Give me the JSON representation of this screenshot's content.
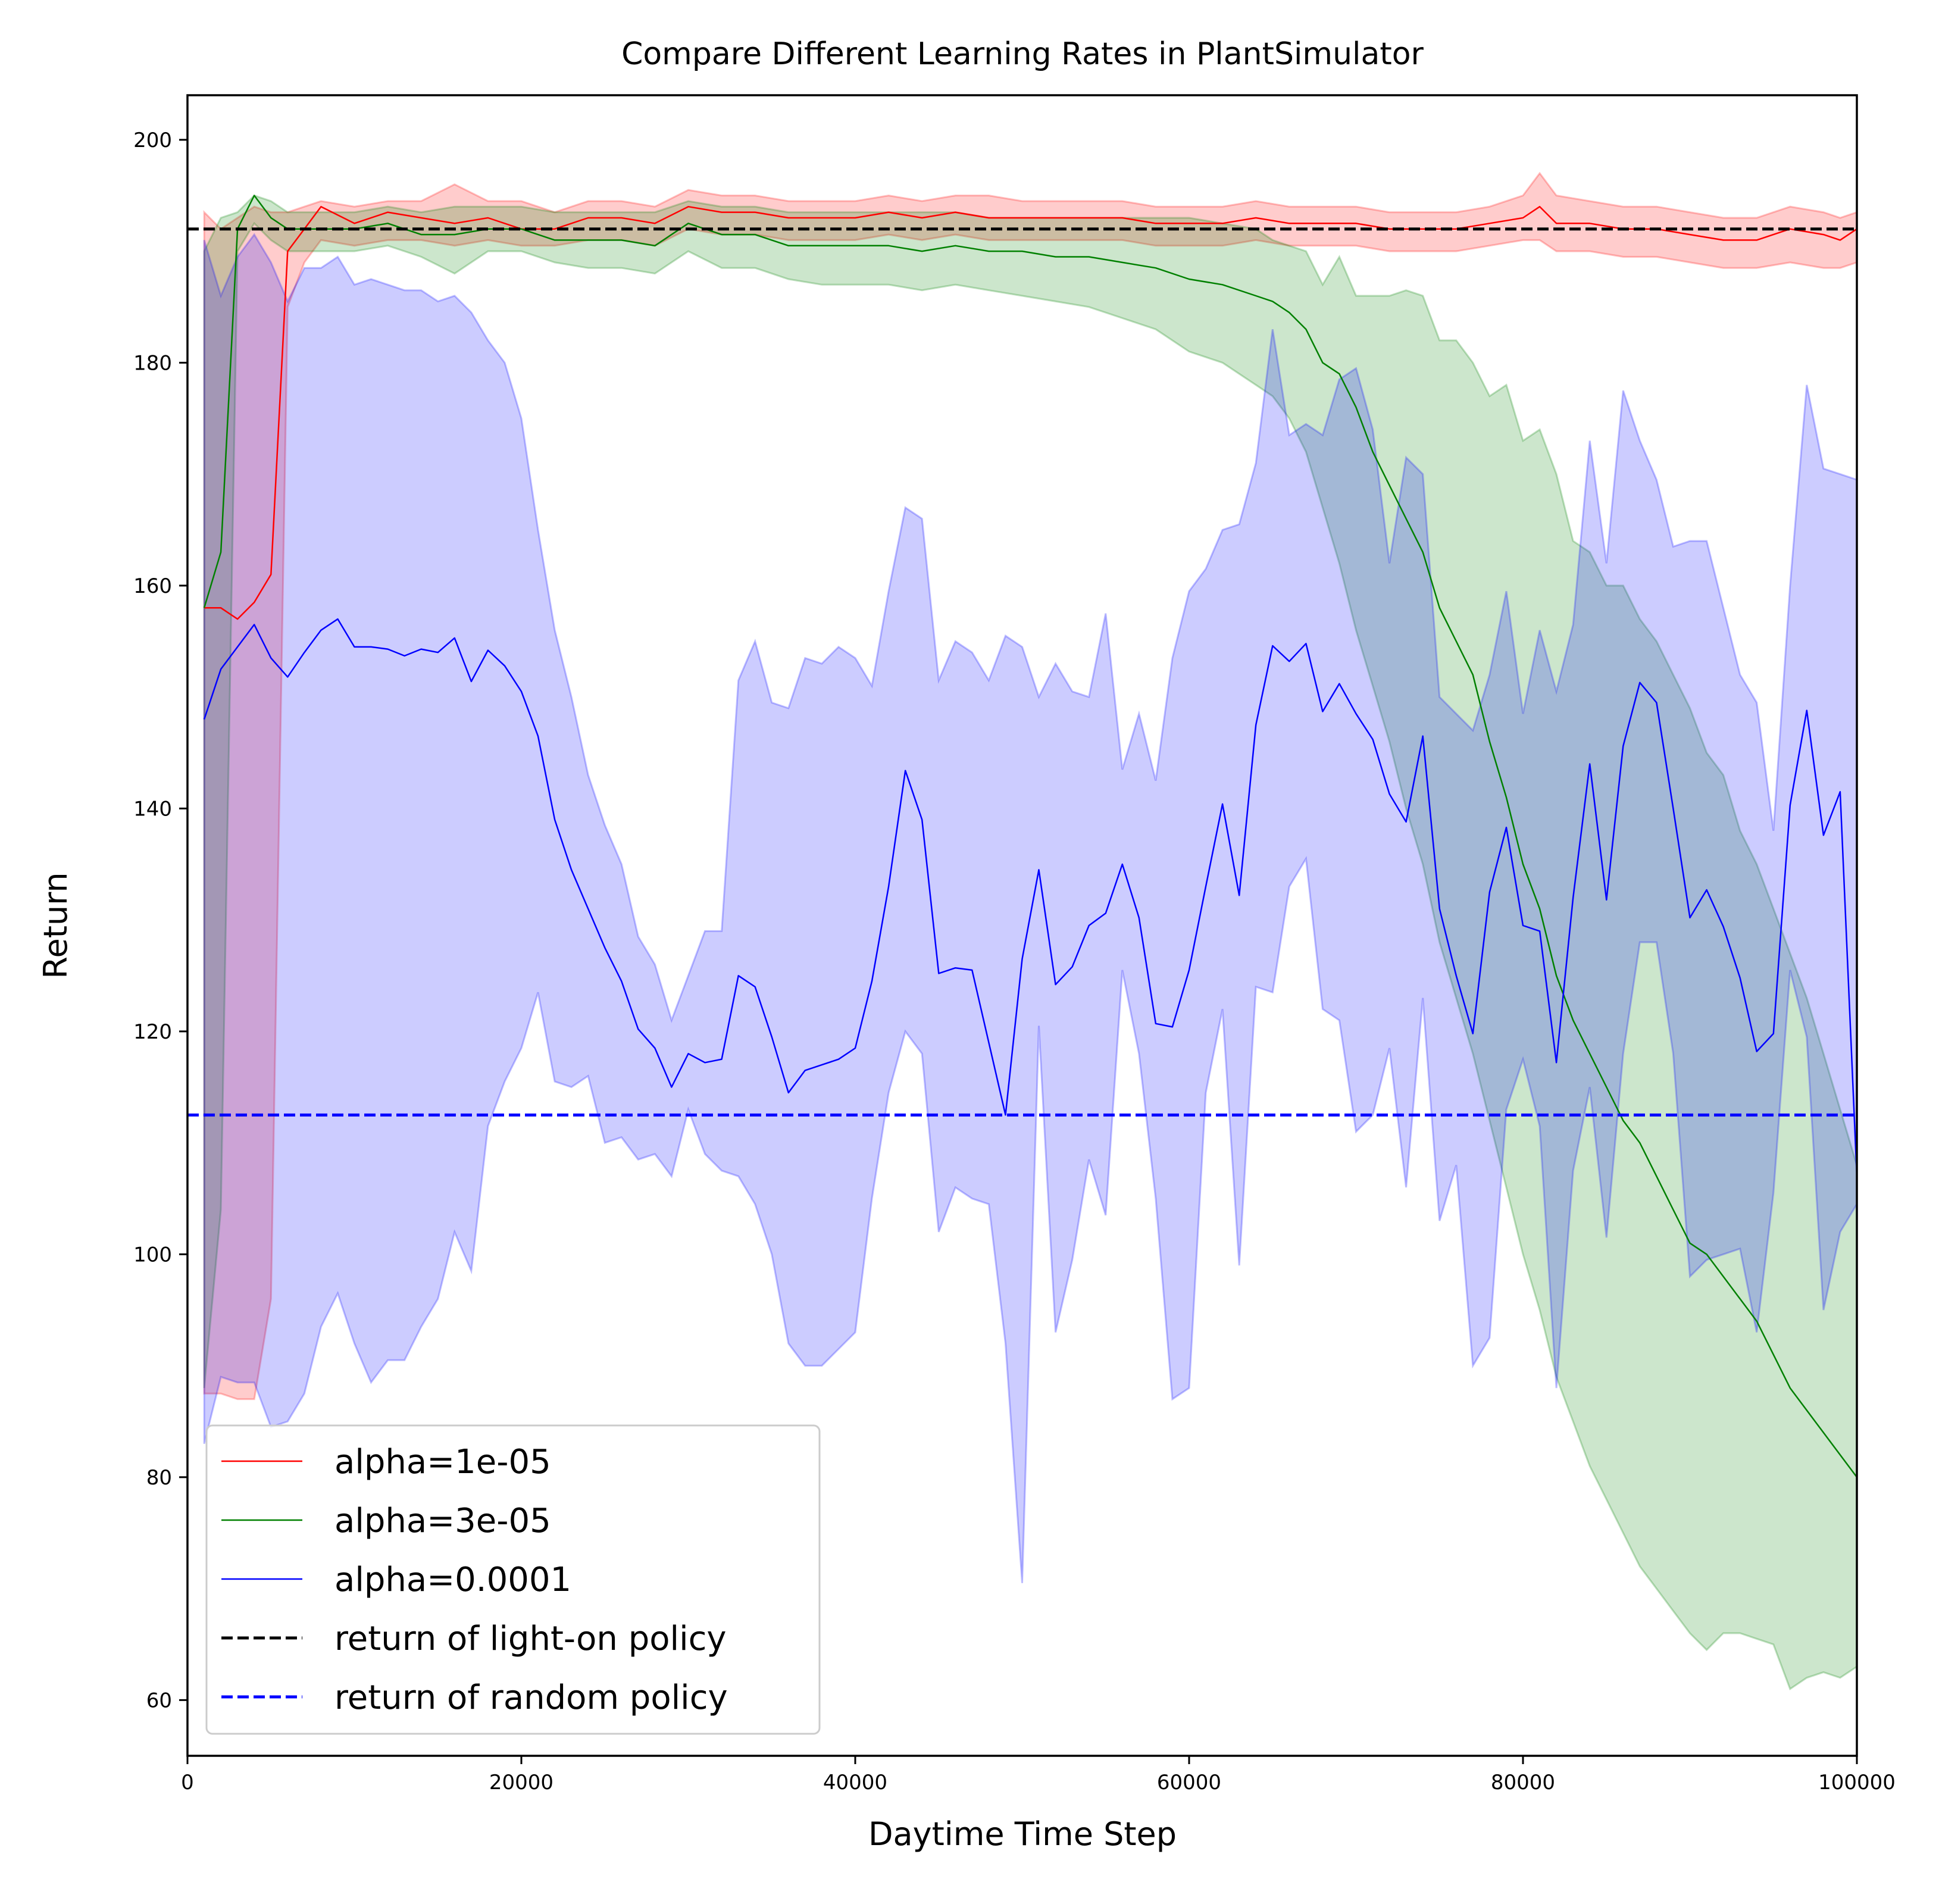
{
  "chart_data": {
    "type": "line",
    "title": "Compare Different Learning Rates in PlantSimulator",
    "xlabel": "Daytime Time Step",
    "ylabel": "Return",
    "xlim": [
      0,
      100000
    ],
    "ylim": [
      55,
      204
    ],
    "xticks": [
      0,
      20000,
      40000,
      60000,
      80000,
      100000
    ],
    "xtick_labels": [
      "0",
      "20000",
      "40000",
      "60000",
      "80000",
      "100000"
    ],
    "yticks": [
      60,
      80,
      100,
      120,
      140,
      160,
      180,
      200
    ],
    "ytick_labels": [
      "60",
      "80",
      "100",
      "120",
      "140",
      "160",
      "180",
      "200"
    ],
    "grid": false,
    "legend_position": "bottom-left",
    "series": [
      {
        "name": "alpha=1e-05",
        "color": "#ff0000",
        "x": [
          1000,
          2000,
          3000,
          4000,
          5000,
          6000,
          7000,
          8000,
          10000,
          12000,
          14000,
          16000,
          18000,
          20000,
          22000,
          24000,
          26000,
          28000,
          30000,
          32000,
          34000,
          36000,
          38000,
          40000,
          42000,
          44000,
          46000,
          48000,
          50000,
          52000,
          54000,
          56000,
          58000,
          60000,
          62000,
          64000,
          66000,
          68000,
          70000,
          72000,
          74000,
          76000,
          78000,
          80000,
          81000,
          82000,
          84000,
          86000,
          88000,
          90000,
          92000,
          94000,
          96000,
          98000,
          99000,
          100000
        ],
        "y": [
          158,
          158,
          157,
          158.5,
          161,
          190,
          192,
          194,
          192.5,
          193.5,
          193,
          192.5,
          193,
          192,
          192,
          193,
          193,
          192.5,
          194,
          193.5,
          193.5,
          193,
          193,
          193,
          193.5,
          193,
          193.5,
          193,
          193,
          193,
          193,
          193,
          192.5,
          192.5,
          192.5,
          193,
          192.5,
          192.5,
          192.5,
          192,
          192,
          192,
          192.5,
          193,
          194,
          192.5,
          192.5,
          192,
          192,
          191.5,
          191,
          191,
          192,
          191.5,
          191,
          192
        ],
        "lower": [
          87.5,
          87.5,
          87,
          87,
          96,
          185,
          189,
          191,
          190.5,
          191,
          191,
          190.5,
          191,
          190.5,
          190.5,
          191,
          191,
          190.5,
          192,
          191.5,
          191.5,
          191,
          191,
          191,
          191.5,
          191,
          191.5,
          191,
          191,
          191,
          191,
          191,
          190.5,
          190.5,
          190.5,
          191,
          190.5,
          190.5,
          190.5,
          190,
          190,
          190,
          190.5,
          191,
          191,
          190,
          190,
          189.5,
          189.5,
          189,
          188.5,
          188.5,
          189,
          188.5,
          188.5,
          189
        ],
        "upper": [
          193.5,
          192,
          193,
          194,
          193.5,
          193.5,
          194,
          194.5,
          194,
          194.5,
          194.5,
          196,
          194.5,
          194.5,
          193.5,
          194.5,
          194.5,
          194,
          195.5,
          195,
          195,
          194.5,
          194.5,
          194.5,
          195,
          194.5,
          195,
          195,
          194.5,
          194.5,
          194.5,
          194.5,
          194,
          194,
          194,
          194.5,
          194,
          194,
          194,
          193.5,
          193.5,
          193.5,
          194,
          195,
          197,
          195,
          194.5,
          194,
          194,
          193.5,
          193,
          193,
          194,
          193.5,
          193,
          193.5
        ]
      },
      {
        "name": "alpha=3e-05",
        "color": "#008000",
        "x": [
          1000,
          2000,
          3000,
          4000,
          5000,
          6000,
          8000,
          10000,
          12000,
          14000,
          16000,
          18000,
          20000,
          22000,
          24000,
          26000,
          28000,
          30000,
          32000,
          34000,
          36000,
          38000,
          40000,
          42000,
          44000,
          46000,
          48000,
          50000,
          52000,
          54000,
          56000,
          58000,
          60000,
          62000,
          64000,
          65000,
          66000,
          67000,
          68000,
          69000,
          70000,
          71000,
          72000,
          73000,
          74000,
          75000,
          76000,
          77000,
          78000,
          79000,
          80000,
          81000,
          82000,
          83000,
          84000,
          85000,
          86000,
          87000,
          88000,
          89000,
          90000,
          91000,
          92000,
          93000,
          94000,
          95000,
          96000,
          97000,
          98000,
          99000,
          100000
        ],
        "y": [
          158,
          163,
          192,
          195,
          193,
          192,
          192,
          192,
          192.5,
          191.5,
          191.5,
          192,
          192,
          191,
          191,
          191,
          190.5,
          192.5,
          191.5,
          191.5,
          190.5,
          190.5,
          190.5,
          190.5,
          190,
          190.5,
          190,
          190,
          189.5,
          189.5,
          189,
          188.5,
          187.5,
          187,
          186,
          185.5,
          184.5,
          183,
          180,
          179,
          176,
          172,
          169,
          166,
          163,
          158,
          155,
          152,
          146,
          141,
          135,
          131,
          125,
          121,
          118,
          115,
          112,
          110,
          107,
          104,
          101,
          100,
          98,
          96,
          94,
          91,
          88,
          86,
          84,
          82,
          80
        ],
        "lower": [
          88,
          104,
          190,
          192.5,
          191,
          190,
          190,
          190,
          190.5,
          189.5,
          188,
          190,
          190,
          189,
          188.5,
          188.5,
          188,
          190,
          188.5,
          188.5,
          187.5,
          187,
          187,
          187,
          186.5,
          187,
          186.5,
          186,
          185.5,
          185,
          184,
          183,
          181,
          180,
          178,
          177,
          175,
          172,
          167,
          162,
          156,
          151,
          146,
          140,
          135,
          128,
          123,
          118,
          112,
          106,
          100,
          95,
          89,
          85,
          81,
          78,
          75,
          72,
          70,
          68,
          66,
          64.5,
          66,
          66,
          65.5,
          65,
          61,
          62,
          62.5,
          62,
          63
        ],
        "upper": [
          190,
          193,
          193.5,
          195,
          194.5,
          193.5,
          193.5,
          193.5,
          194,
          193.5,
          194,
          194,
          194,
          193.5,
          193.5,
          193.5,
          193.5,
          194.5,
          194,
          194,
          193.5,
          193.5,
          193.5,
          193.5,
          193.5,
          193.5,
          193,
          193,
          193,
          193,
          193,
          193,
          193,
          192.5,
          192,
          191,
          190.5,
          190,
          187,
          189.5,
          186,
          186,
          186,
          186.5,
          186,
          182,
          182,
          180,
          177,
          178,
          173,
          174,
          170,
          164,
          163,
          160,
          160,
          157,
          155,
          152,
          149,
          145,
          143,
          138,
          135,
          131,
          127,
          123,
          118,
          113,
          108
        ]
      },
      {
        "name": "alpha=0.0001",
        "color": "#0000ff",
        "x": [
          1000,
          2000,
          3000,
          4000,
          5000,
          6000,
          7000,
          8000,
          9000,
          10000,
          11000,
          12000,
          13000,
          14000,
          15000,
          16000,
          17000,
          18000,
          19000,
          20000,
          21000,
          22000,
          23000,
          24000,
          25000,
          26000,
          27000,
          28000,
          29000,
          30000,
          31000,
          32000,
          33000,
          34000,
          35000,
          36000,
          37000,
          38000,
          39000,
          40000,
          41000,
          42000,
          43000,
          44000,
          45000,
          46000,
          47000,
          48000,
          49000,
          50000,
          51000,
          52000,
          53000,
          54000,
          55000,
          56000,
          57000,
          58000,
          59000,
          60000,
          61000,
          62000,
          63000,
          64000,
          65000,
          66000,
          67000,
          68000,
          69000,
          70000,
          71000,
          72000,
          73000,
          74000,
          75000,
          76000,
          77000,
          78000,
          79000,
          80000,
          81000,
          82000,
          83000,
          84000,
          85000,
          86000,
          87000,
          88000,
          89000,
          90000,
          91000,
          92000,
          93000,
          94000,
          95000,
          96000,
          97000,
          98000,
          99000,
          100000
        ],
        "y": [
          148,
          152.5,
          154.5,
          156.5,
          153.5,
          151.8,
          154,
          156,
          157,
          154.5,
          154.5,
          154.3,
          153.7,
          154.3,
          154,
          155.3,
          151.4,
          154.2,
          152.8,
          150.5,
          146.5,
          139,
          134.5,
          131,
          127.5,
          124.5,
          120.2,
          118.5,
          115,
          118,
          117.2,
          117.5,
          125,
          124,
          119.5,
          114.5,
          116.5,
          117,
          117.5,
          118.5,
          124.5,
          133,
          143.4,
          139,
          125.2,
          125.7,
          125.5,
          119,
          112.5,
          126.5,
          134.5,
          124.2,
          125.8,
          129.5,
          130.6,
          135,
          130.2,
          120.7,
          120.4,
          125.5,
          133,
          140.4,
          132.2,
          147.5,
          154.6,
          153.2,
          154.8,
          148.7,
          151.2,
          148.5,
          146.2,
          141.3,
          138.8,
          146.5,
          131,
          125,
          119.8,
          132.5,
          138.3,
          129.5,
          129,
          117.2,
          132,
          144,
          131.8,
          145.6,
          151.3,
          149.5,
          140,
          130.2,
          132.7,
          129.4,
          124.8,
          118.2,
          119.8,
          140.3,
          148.8,
          137.6,
          141.5,
          107
        ],
        "lower": [
          83,
          89,
          88.5,
          88.5,
          84.5,
          85,
          87.5,
          93.5,
          96.5,
          92,
          88.5,
          90.5,
          90.5,
          93.5,
          96,
          102,
          98.5,
          111.5,
          115.5,
          118.5,
          123.5,
          115.5,
          115,
          116,
          110,
          110.5,
          108.5,
          109,
          107,
          113,
          109,
          107.5,
          107,
          104.5,
          100,
          92,
          90,
          90,
          91.5,
          93,
          105,
          114.5,
          120,
          118,
          102,
          106,
          105,
          104.5,
          92,
          70.5,
          120.5,
          93,
          99.5,
          108.5,
          103.5,
          125.5,
          118,
          105,
          87,
          88,
          114.5,
          122,
          99,
          124,
          123.5,
          133,
          135.5,
          122,
          121,
          111,
          112.5,
          118.5,
          106,
          123,
          103,
          108,
          90,
          92.5,
          113,
          117.5,
          111.5,
          88,
          107.5,
          115,
          101.5,
          118,
          128,
          128,
          118,
          98,
          99.5,
          100,
          100.5,
          93,
          105.5,
          125.5,
          119.5,
          95,
          102,
          104.5
        ],
        "upper": [
          191,
          186,
          189.5,
          191.5,
          189,
          185.5,
          188.5,
          188.5,
          189.5,
          187,
          187.5,
          187,
          186.5,
          186.5,
          185.5,
          186,
          184.5,
          182,
          180,
          175,
          165,
          156,
          150,
          143,
          138.5,
          135,
          128.5,
          126,
          121,
          125,
          129,
          129,
          151.5,
          155,
          149.5,
          149,
          153.5,
          153,
          154.5,
          153.5,
          151,
          159.5,
          167,
          166,
          151.5,
          155,
          154,
          151.5,
          155.5,
          154.5,
          150,
          153,
          150.5,
          150,
          157.5,
          143.5,
          148.5,
          142.5,
          153.5,
          159.5,
          161.5,
          165,
          165.5,
          171,
          183,
          173.5,
          174.5,
          173.5,
          178.5,
          179.5,
          174,
          162,
          171.5,
          170,
          150,
          148.5,
          147,
          152,
          159.5,
          148.5,
          156,
          150.5,
          156.5,
          173,
          162,
          177.5,
          173,
          169.5,
          163.5,
          164,
          164,
          158,
          152,
          149.5,
          138,
          160,
          178,
          170.5,
          170,
          169.5
        ]
      },
      {
        "name": "return of light-on policy",
        "color": "#000000",
        "style": "dashed",
        "y_constant": 192
      },
      {
        "name": "return of random policy",
        "color": "#0000ff",
        "style": "dashed",
        "y_constant": 112.5
      }
    ]
  }
}
